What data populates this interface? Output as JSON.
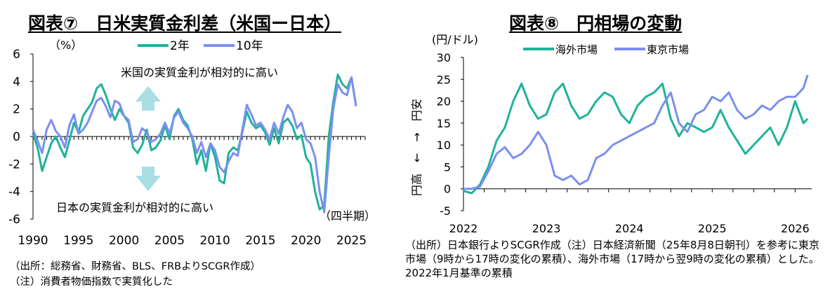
{
  "charts": [
    {
      "title": "図表⑦　日米実質金利差（米国ー日本）",
      "unit": "（%）",
      "ytick_labels": [
        "6",
        "4",
        "2",
        "0",
        "-2",
        "-4",
        "-6"
      ],
      "xtick_labels": [
        "1990",
        "1995",
        "2000",
        "2005",
        "2010",
        "2015",
        "2020",
        "2025"
      ],
      "annotation_up": "米国の実質金利が相対的に高い",
      "annotation_down": "日本の実質金利が相対的に高い",
      "xaxis_note": "（四半期）",
      "note_source": "（出所：総務省、財務省、BLS、FRBよりSCGR作成）",
      "note_remark": "（注）消費者物価指数で実質化した"
    },
    {
      "title": "図表⑧　円相場の変動",
      "unit": "(円/ドル)",
      "ytick_labels": [
        "30",
        "25",
        "20",
        "15",
        "10",
        "5",
        "0",
        "-5"
      ],
      "xtick_labels": [
        "2022",
        "2023",
        "2024",
        "2025",
        "2026"
      ],
      "yside_label": "円高　←　→　円安",
      "note": "（出所）日本銀行よりSCGR作成（注）日本経済新聞（25年8月8日朝刊）を参考に東京市場（9時から17時の変化の累積）、海外市場（17時から翌9時の変化の累積）とした。2022年1月基準の累積"
    }
  ],
  "colors": {
    "teal": "#1fb29a",
    "blue": "#7b8ff0",
    "arrow": "#a8dee4"
  },
  "chart_data": [
    {
      "type": "line",
      "title": "図表⑦　日米実質金利差（米国ー日本）",
      "ylabel": "（%）",
      "xlabel": "（四半期）",
      "ylim": [
        -6,
        6
      ],
      "xlim": [
        1990,
        2026.5
      ],
      "series": [
        {
          "name": "2年",
          "color": "#1fb29a",
          "x": [
            1990,
            1990.5,
            1991,
            1991.5,
            1992,
            1992.5,
            1993,
            1993.5,
            1994,
            1994.5,
            1995,
            1995.5,
            1996,
            1996.5,
            1997,
            1997.5,
            1998,
            1998.5,
            1999,
            1999.5,
            2000,
            2000.5,
            2001,
            2001.5,
            2002,
            2002.5,
            2003,
            2003.5,
            2004,
            2004.5,
            2005,
            2005.5,
            2006,
            2006.5,
            2007,
            2007.5,
            2008,
            2008.5,
            2009,
            2009.5,
            2010,
            2010.5,
            2011,
            2011.5,
            2012,
            2012.5,
            2013,
            2013.5,
            2014,
            2014.5,
            2015,
            2015.5,
            2016,
            2016.5,
            2017,
            2017.5,
            2018,
            2018.5,
            2019,
            2019.5,
            2020,
            2020.5,
            2021,
            2021.5,
            2022,
            2022.5,
            2023,
            2023.5,
            2024,
            2024.5,
            2025,
            2025.5
          ],
          "values": [
            0.2,
            -0.8,
            -2.5,
            -1.5,
            -0.5,
            0.0,
            -0.8,
            -1.5,
            -0.3,
            1.0,
            0.3,
            1.5,
            2.0,
            2.5,
            3.5,
            3.8,
            3.0,
            2.0,
            1.2,
            2.0,
            1.5,
            1.0,
            -0.8,
            -1.2,
            -0.6,
            0.5,
            -1.0,
            -0.8,
            -0.3,
            0.8,
            -0.2,
            1.5,
            2.0,
            1.2,
            0.8,
            -0.2,
            -2.0,
            -1.0,
            -2.5,
            -0.5,
            -1.5,
            -3.2,
            -3.4,
            -1.2,
            -0.8,
            -1.0,
            0.3,
            1.8,
            1.0,
            0.6,
            0.8,
            0.3,
            -0.6,
            0.6,
            -0.5,
            1.0,
            1.3,
            0.8,
            -0.2,
            0.1,
            -1.5,
            -2.0,
            -4.0,
            -5.3,
            -5.0,
            0.0,
            2.5,
            4.5,
            3.8,
            3.5,
            4.3,
            2.2
          ]
        },
        {
          "name": "10年",
          "color": "#7b8ff0",
          "x": [
            1990,
            1990.5,
            1991,
            1991.5,
            1992,
            1992.5,
            1993,
            1993.5,
            1994,
            1994.5,
            1995,
            1995.5,
            1996,
            1996.5,
            1997,
            1997.5,
            1998,
            1998.5,
            1999,
            1999.5,
            2000,
            2000.5,
            2001,
            2001.5,
            2002,
            2002.5,
            2003,
            2003.5,
            2004,
            2004.5,
            2005,
            2005.5,
            2006,
            2006.5,
            2007,
            2007.5,
            2008,
            2008.5,
            2009,
            2009.5,
            2010,
            2010.5,
            2011,
            2011.5,
            2012,
            2012.5,
            2013,
            2013.5,
            2014,
            2014.5,
            2015,
            2015.5,
            2016,
            2016.5,
            2017,
            2017.5,
            2018,
            2018.5,
            2019,
            2019.5,
            2020,
            2020.5,
            2021,
            2021.5,
            2022,
            2022.5,
            2023,
            2023.5,
            2024,
            2024.5,
            2025,
            2025.5
          ],
          "values": [
            0.5,
            -0.3,
            -1.2,
            0.5,
            1.2,
            0.4,
            0.0,
            -0.8,
            0.8,
            1.6,
            0.2,
            0.5,
            1.0,
            1.8,
            2.6,
            2.8,
            2.2,
            1.4,
            2.6,
            2.4,
            1.5,
            1.2,
            -0.4,
            -0.2,
            0.6,
            0.3,
            -0.4,
            -0.2,
            0.2,
            1.0,
            0.2,
            1.4,
            1.8,
            1.0,
            0.6,
            0.0,
            -1.2,
            -0.4,
            -1.5,
            -0.5,
            -1.0,
            -2.2,
            -2.6,
            -1.8,
            -1.2,
            -1.4,
            0.5,
            2.3,
            1.6,
            0.8,
            1.0,
            0.5,
            -0.2,
            1.0,
            0.2,
            1.4,
            2.3,
            1.8,
            0.6,
            1.0,
            -0.2,
            -0.5,
            -1.5,
            -4.0,
            -5.5,
            -1.5,
            2.0,
            3.8,
            3.2,
            3.0,
            4.3,
            2.2
          ]
        }
      ]
    },
    {
      "type": "line",
      "title": "図表⑧　円相場の変動",
      "ylabel": "(円/ドル)",
      "ylim": [
        -5,
        30
      ],
      "xlim": [
        2022,
        2026.2
      ],
      "series": [
        {
          "name": "海外市場",
          "color": "#1fb29a",
          "x": [
            2022,
            2022.1,
            2022.2,
            2022.3,
            2022.4,
            2022.5,
            2022.6,
            2022.7,
            2022.8,
            2022.9,
            2023,
            2023.1,
            2023.2,
            2023.3,
            2023.4,
            2023.5,
            2023.6,
            2023.7,
            2023.8,
            2023.9,
            2024,
            2024.1,
            2024.2,
            2024.3,
            2024.4,
            2024.5,
            2024.6,
            2024.7,
            2024.8,
            2024.9,
            2025,
            2025.1,
            2025.2,
            2025.3,
            2025.4,
            2025.5,
            2025.6,
            2025.7,
            2025.8,
            2025.9,
            2026,
            2026.1,
            2026.15
          ],
          "values": [
            -0.5,
            -1.0,
            1.0,
            5.0,
            11.0,
            14.0,
            20.0,
            24.0,
            19.0,
            16.0,
            17.0,
            22.0,
            24.0,
            19.0,
            16.0,
            17.0,
            20.0,
            22.0,
            21.0,
            17.0,
            15.0,
            19.0,
            21.0,
            22.0,
            24.0,
            16.0,
            12.0,
            15.0,
            14.0,
            13.0,
            14.0,
            18.0,
            14.0,
            11.0,
            8.0,
            10.0,
            12.0,
            14.0,
            10.0,
            14.0,
            20.0,
            15.0,
            16.0
          ]
        },
        {
          "name": "東京市場",
          "color": "#7b8ff0",
          "x": [
            2022,
            2022.1,
            2022.2,
            2022.3,
            2022.4,
            2022.5,
            2022.6,
            2022.7,
            2022.8,
            2022.9,
            2023,
            2023.1,
            2023.2,
            2023.3,
            2023.4,
            2023.5,
            2023.6,
            2023.7,
            2023.8,
            2023.9,
            2024,
            2024.1,
            2024.2,
            2024.3,
            2024.4,
            2024.5,
            2024.6,
            2024.7,
            2024.8,
            2024.9,
            2025,
            2025.1,
            2025.2,
            2025.3,
            2025.4,
            2025.5,
            2025.6,
            2025.7,
            2025.8,
            2025.9,
            2026,
            2026.1,
            2026.15
          ],
          "values": [
            0.0,
            0.0,
            0.5,
            4.0,
            8.0,
            9.5,
            7.0,
            8.0,
            10.0,
            13.0,
            10.0,
            3.0,
            2.0,
            3.0,
            1.0,
            2.0,
            7.0,
            8.0,
            10.0,
            11.0,
            12.0,
            13.0,
            14.0,
            15.0,
            19.0,
            22.0,
            15.0,
            13.0,
            17.0,
            18.0,
            21.0,
            20.0,
            22.0,
            18.0,
            16.0,
            17.0,
            19.0,
            18.0,
            20.0,
            21.0,
            21.0,
            23.0,
            26.0
          ]
        }
      ]
    }
  ]
}
